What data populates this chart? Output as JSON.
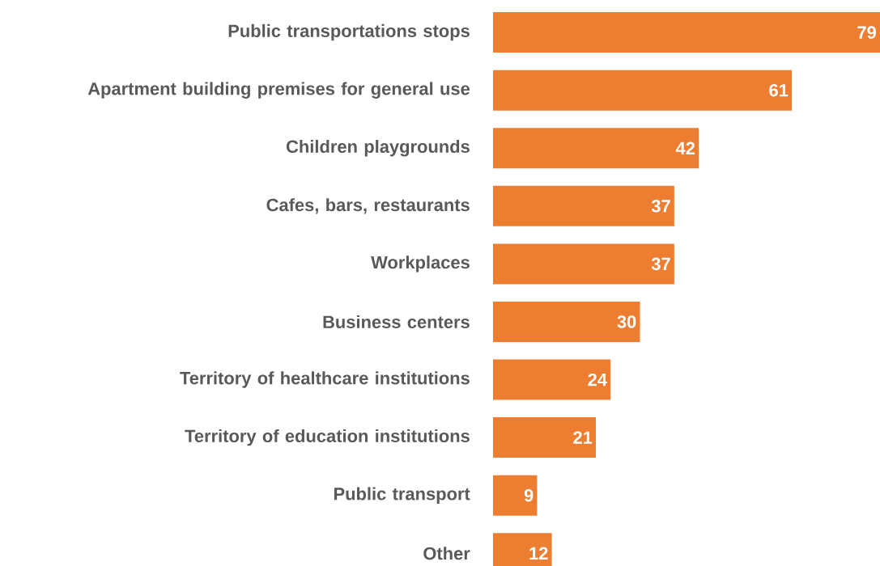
{
  "chart_data": {
    "type": "bar",
    "orientation": "horizontal",
    "data_labels": true,
    "color": "#ed7d31",
    "categories": [
      "Public transportations stops",
      "Apartment building premises for general use",
      "Children playgrounds",
      "Cafes, bars, restaurants",
      "Workplaces",
      "Business centers",
      "Territory of healthcare institutions",
      "Territory of education institutions",
      "Public transport",
      "Other"
    ],
    "values": [
      79,
      61,
      42,
      37,
      37,
      30,
      24,
      21,
      9,
      12
    ]
  }
}
